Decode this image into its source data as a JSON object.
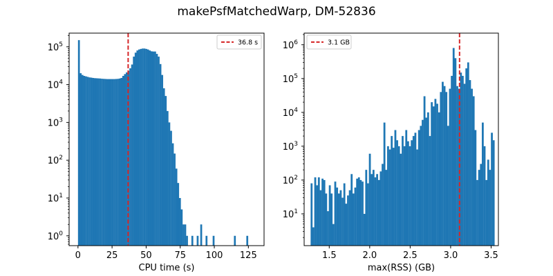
{
  "chart_data": {
    "title": "makePsfMatchedWarp, DM-52836",
    "colors": {
      "bars": "#1f77b4",
      "marker": "#d62728",
      "axis": "#000000"
    },
    "panels": [
      {
        "type": "bar",
        "xlabel": "CPU time (s)",
        "ylabel": "",
        "yscale": "log",
        "xlim": [
          -6.5,
          136.5
        ],
        "ylim": [
          0.55,
          230000
        ],
        "xticks": [
          0,
          25,
          50,
          75,
          100,
          125
        ],
        "yticks": [
          {
            "base": "10",
            "exp": "0",
            "value": 1
          },
          {
            "base": "10",
            "exp": "1",
            "value": 10
          },
          {
            "base": "10",
            "exp": "2",
            "value": 100
          },
          {
            "base": "10",
            "exp": "3",
            "value": 1000
          },
          {
            "base": "10",
            "exp": "4",
            "value": 10000
          },
          {
            "base": "10",
            "exp": "5",
            "value": 100000
          }
        ],
        "marker": {
          "x": 36.8,
          "label": "36.8 s"
        },
        "legend": "top-right",
        "bin_start": 0,
        "bin_width": 1.3,
        "values": [
          150000,
          20000,
          18000,
          17000,
          16500,
          16000,
          15500,
          15300,
          15000,
          14800,
          14700,
          14600,
          14500,
          14300,
          14200,
          14100,
          14000,
          14000,
          14000,
          14000,
          14000,
          14100,
          14200,
          14500,
          15000,
          17000,
          19000,
          21000,
          23000,
          27000,
          34000,
          55000,
          70000,
          80000,
          85000,
          88000,
          90000,
          90000,
          88000,
          85000,
          80000,
          76000,
          75000,
          75000,
          65000,
          55000,
          35000,
          18000,
          8000,
          5000,
          2000,
          1000,
          600,
          280,
          150,
          60,
          25,
          10,
          5,
          2,
          2,
          1,
          0,
          0,
          1,
          0,
          0,
          1,
          0,
          2,
          0,
          0,
          1,
          0,
          0,
          0,
          1,
          0,
          0,
          0,
          0,
          0,
          0,
          0,
          0,
          0,
          0,
          0,
          1,
          0,
          0,
          0,
          0,
          0,
          0,
          1,
          0,
          0,
          0,
          0
        ]
      },
      {
        "type": "bar",
        "xlabel": "max(RSS) (GB)",
        "ylabel": "",
        "yscale": "log",
        "xlim": [
          1.19,
          3.59
        ],
        "ylim": [
          1.15,
          2200000
        ],
        "xticks": [
          1.5,
          2.0,
          2.5,
          3.0,
          3.5
        ],
        "xtick_labels": [
          "1.5",
          "2.0",
          "2.5",
          "3.0",
          "3.5"
        ],
        "yticks": [
          {
            "base": "10",
            "exp": "1",
            "value": 10
          },
          {
            "base": "10",
            "exp": "2",
            "value": 100
          },
          {
            "base": "10",
            "exp": "3",
            "value": 1000
          },
          {
            "base": "10",
            "exp": "4",
            "value": 10000
          },
          {
            "base": "10",
            "exp": "5",
            "value": 100000
          },
          {
            "base": "10",
            "exp": "6",
            "value": 1000000
          }
        ],
        "marker": {
          "x": 3.11,
          "label": "3.1 GB"
        },
        "legend": "top-left",
        "bin_start": 1.27,
        "bin_width": 0.0225,
        "values": [
          80,
          4,
          120,
          70,
          120,
          50,
          110,
          100,
          40,
          12,
          70,
          40,
          5,
          90,
          60,
          40,
          50,
          30,
          80,
          20,
          35,
          50,
          150,
          40,
          60,
          110,
          120,
          100,
          90,
          10,
          200,
          80,
          600,
          150,
          200,
          120,
          150,
          100,
          180,
          300,
          5000,
          200,
          1000,
          800,
          2000,
          900,
          3000,
          1500,
          1000,
          600,
          2000,
          1000,
          3000,
          1400,
          1000,
          1500,
          2000,
          2500,
          800,
          3000,
          4000,
          6000,
          30000,
          7000,
          10000,
          2000,
          20000,
          15000,
          25000,
          18000,
          10000,
          40000,
          80000,
          60000,
          40000,
          4000,
          50000,
          120000,
          800000,
          400000,
          60000,
          50000,
          150000,
          120000,
          70000,
          200000,
          300000,
          90000,
          50000,
          30000,
          3000,
          100,
          200,
          300,
          5000,
          1000,
          100,
          400,
          200,
          2500,
          1500
        ]
      }
    ]
  }
}
